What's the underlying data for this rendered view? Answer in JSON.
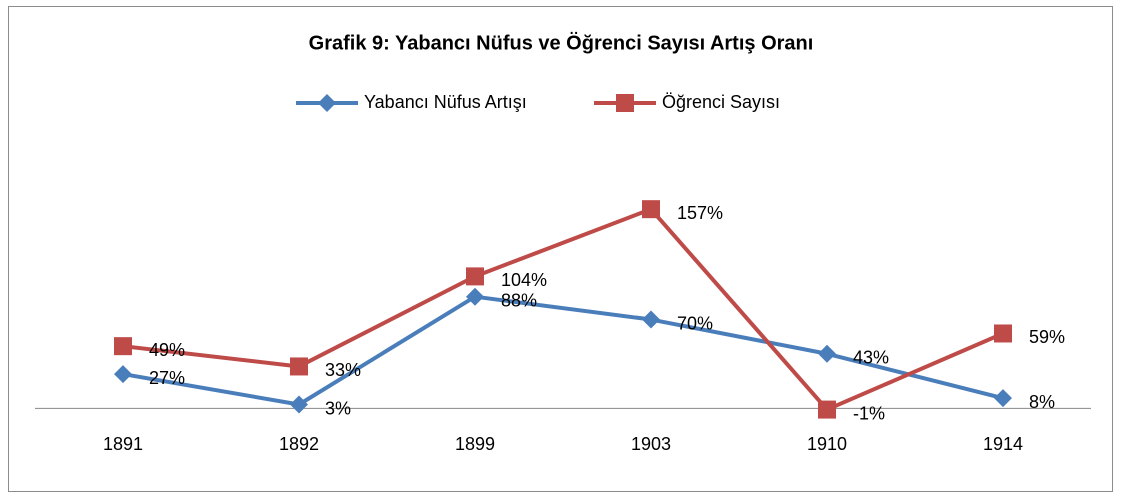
{
  "chart_data": {
    "type": "line",
    "title": "Grafik 9: Yabancı Nüfus ve Öğrenci Sayısı Artış Oranı",
    "categories": [
      "1891",
      "1892",
      "1899",
      "1903",
      "1910",
      "1914"
    ],
    "series": [
      {
        "name": "Yabancı Nüfus Artışı",
        "color": "#4a7ebb",
        "marker": "diamond",
        "values": [
          27,
          3,
          88,
          70,
          43,
          8
        ],
        "value_labels": [
          "27%",
          "3%",
          "88%",
          "70%",
          "43%",
          "8%"
        ]
      },
      {
        "name": "Öğrenci Sayısı",
        "color": "#be4b48",
        "marker": "square",
        "values": [
          49,
          33,
          104,
          157,
          -1,
          59
        ],
        "value_labels": [
          "49%",
          "33%",
          "104%",
          "157%",
          "-1%",
          "59%"
        ]
      }
    ],
    "ylim": [
      -10,
      180
    ],
    "legend": "top"
  }
}
